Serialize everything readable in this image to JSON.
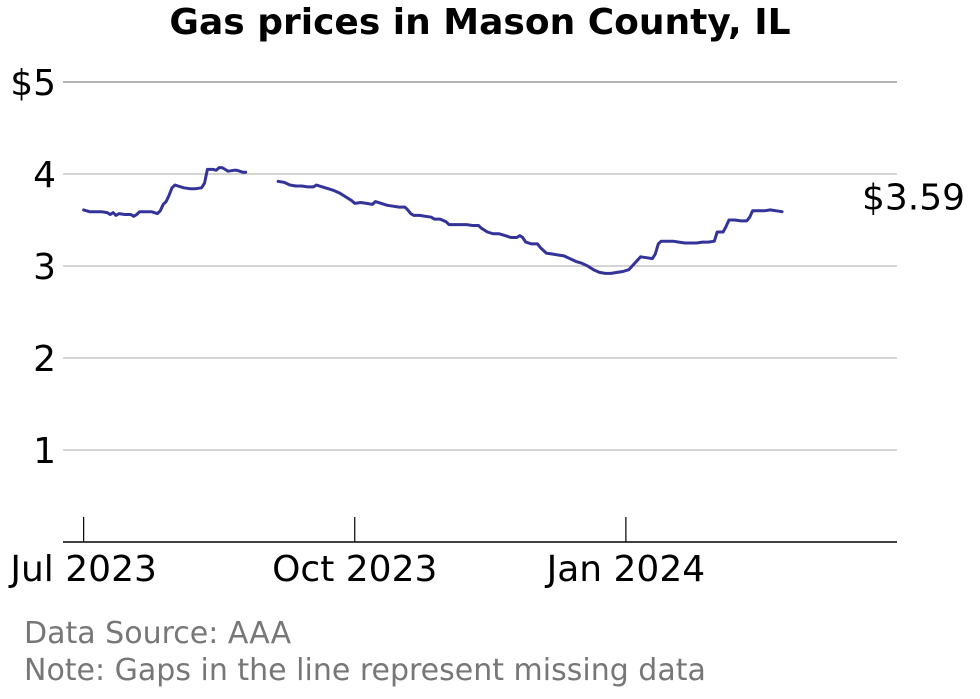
{
  "chart_data": {
    "type": "line",
    "title": "Gas prices in Mason County, IL",
    "xlabel": "",
    "ylabel": "",
    "ylim": [
      0,
      5
    ],
    "xlim": [
      "2023-06-24",
      "2024-04-02"
    ],
    "y_ticks": [
      {
        "value": 5,
        "label": "$5"
      },
      {
        "value": 4,
        "label": "4"
      },
      {
        "value": 3,
        "label": "3"
      },
      {
        "value": 2,
        "label": "2"
      },
      {
        "value": 1,
        "label": "1"
      }
    ],
    "x_ticks": [
      {
        "date": "2023-07-01",
        "label": "Jul 2023"
      },
      {
        "date": "2023-10-01",
        "label": "Oct 2023"
      },
      {
        "date": "2024-01-01",
        "label": "Jan 2024"
      }
    ],
    "grid": true,
    "line_color": "#333399",
    "end_label": "$3.59",
    "series": [
      {
        "segments": [
          [
            [
              "2023-07-01",
              3.61
            ],
            [
              "2023-07-03",
              3.59
            ],
            [
              "2023-07-05",
              3.59
            ],
            [
              "2023-07-07",
              3.59
            ],
            [
              "2023-07-09",
              3.58
            ],
            [
              "2023-07-10",
              3.56
            ],
            [
              "2023-07-11",
              3.58
            ],
            [
              "2023-07-12",
              3.55
            ],
            [
              "2023-07-13",
              3.57
            ],
            [
              "2023-07-15",
              3.56
            ],
            [
              "2023-07-17",
              3.56
            ],
            [
              "2023-07-18",
              3.54
            ],
            [
              "2023-07-19",
              3.56
            ],
            [
              "2023-07-20",
              3.59
            ],
            [
              "2023-07-22",
              3.59
            ],
            [
              "2023-07-24",
              3.59
            ],
            [
              "2023-07-26",
              3.57
            ],
            [
              "2023-07-27",
              3.6
            ],
            [
              "2023-07-28",
              3.67
            ],
            [
              "2023-07-29",
              3.7
            ],
            [
              "2023-07-30",
              3.77
            ],
            [
              "2023-07-31",
              3.85
            ],
            [
              "2023-08-01",
              3.88
            ],
            [
              "2023-08-02",
              3.87
            ],
            [
              "2023-08-04",
              3.85
            ],
            [
              "2023-08-06",
              3.84
            ],
            [
              "2023-08-08",
              3.84
            ],
            [
              "2023-08-10",
              3.85
            ],
            [
              "2023-08-11",
              3.9
            ],
            [
              "2023-08-12",
              4.05
            ],
            [
              "2023-08-14",
              4.05
            ],
            [
              "2023-08-15",
              4.04
            ],
            [
              "2023-08-16",
              4.07
            ],
            [
              "2023-08-17",
              4.07
            ],
            [
              "2023-08-18",
              4.05
            ],
            [
              "2023-08-19",
              4.03
            ],
            [
              "2023-08-21",
              4.04
            ],
            [
              "2023-08-22",
              4.04
            ],
            [
              "2023-08-24",
              4.02
            ],
            [
              "2023-08-25",
              4.02
            ]
          ],
          [
            [
              "2023-09-05",
              3.92
            ],
            [
              "2023-09-07",
              3.91
            ],
            [
              "2023-09-09",
              3.88
            ],
            [
              "2023-09-11",
              3.87
            ],
            [
              "2023-09-13",
              3.87
            ],
            [
              "2023-09-15",
              3.86
            ],
            [
              "2023-09-17",
              3.86
            ],
            [
              "2023-09-18",
              3.88
            ],
            [
              "2023-09-20",
              3.86
            ],
            [
              "2023-09-22",
              3.84
            ],
            [
              "2023-09-24",
              3.82
            ],
            [
              "2023-09-26",
              3.79
            ],
            [
              "2023-09-28",
              3.75
            ],
            [
              "2023-09-30",
              3.71
            ],
            [
              "2023-10-01",
              3.68
            ],
            [
              "2023-10-03",
              3.69
            ],
            [
              "2023-10-05",
              3.68
            ],
            [
              "2023-10-07",
              3.67
            ],
            [
              "2023-10-08",
              3.7
            ],
            [
              "2023-10-10",
              3.68
            ],
            [
              "2023-10-12",
              3.66
            ],
            [
              "2023-10-14",
              3.65
            ],
            [
              "2023-10-16",
              3.64
            ],
            [
              "2023-10-18",
              3.64
            ],
            [
              "2023-10-19",
              3.61
            ],
            [
              "2023-10-20",
              3.57
            ],
            [
              "2023-10-21",
              3.55
            ],
            [
              "2023-10-23",
              3.55
            ],
            [
              "2023-10-25",
              3.54
            ],
            [
              "2023-10-27",
              3.53
            ],
            [
              "2023-10-28",
              3.51
            ],
            [
              "2023-10-30",
              3.51
            ],
            [
              "2023-11-01",
              3.48
            ],
            [
              "2023-11-02",
              3.45
            ],
            [
              "2023-11-04",
              3.45
            ],
            [
              "2023-11-06",
              3.45
            ],
            [
              "2023-11-08",
              3.45
            ],
            [
              "2023-11-10",
              3.44
            ],
            [
              "2023-11-12",
              3.44
            ],
            [
              "2023-11-13",
              3.41
            ],
            [
              "2023-11-15",
              3.37
            ],
            [
              "2023-11-17",
              3.35
            ],
            [
              "2023-11-19",
              3.35
            ],
            [
              "2023-11-21",
              3.33
            ],
            [
              "2023-11-23",
              3.31
            ],
            [
              "2023-11-25",
              3.31
            ],
            [
              "2023-11-26",
              3.33
            ],
            [
              "2023-11-27",
              3.31
            ],
            [
              "2023-11-28",
              3.26
            ],
            [
              "2023-11-30",
              3.24
            ],
            [
              "2023-12-02",
              3.24
            ],
            [
              "2023-12-03",
              3.2
            ],
            [
              "2023-12-05",
              3.14
            ],
            [
              "2023-12-07",
              3.13
            ],
            [
              "2023-12-09",
              3.12
            ],
            [
              "2023-12-11",
              3.11
            ],
            [
              "2023-12-13",
              3.08
            ],
            [
              "2023-12-15",
              3.05
            ],
            [
              "2023-12-17",
              3.03
            ],
            [
              "2023-12-19",
              3.0
            ],
            [
              "2023-12-21",
              2.96
            ],
            [
              "2023-12-23",
              2.93
            ],
            [
              "2023-12-25",
              2.92
            ],
            [
              "2023-12-27",
              2.92
            ],
            [
              "2023-12-29",
              2.93
            ],
            [
              "2023-12-31",
              2.94
            ],
            [
              "2024-01-02",
              2.96
            ],
            [
              "2024-01-04",
              3.03
            ],
            [
              "2024-01-06",
              3.1
            ],
            [
              "2024-01-08",
              3.09
            ],
            [
              "2024-01-10",
              3.08
            ],
            [
              "2024-01-11",
              3.13
            ],
            [
              "2024-01-12",
              3.24
            ],
            [
              "2024-01-13",
              3.27
            ],
            [
              "2024-01-15",
              3.27
            ],
            [
              "2024-01-17",
              3.27
            ],
            [
              "2024-01-19",
              3.26
            ],
            [
              "2024-01-21",
              3.25
            ],
            [
              "2024-01-23",
              3.25
            ],
            [
              "2024-01-25",
              3.25
            ],
            [
              "2024-01-27",
              3.26
            ],
            [
              "2024-01-29",
              3.26
            ],
            [
              "2024-01-31",
              3.27
            ],
            [
              "2024-02-01",
              3.37
            ],
            [
              "2024-02-03",
              3.37
            ],
            [
              "2024-02-04",
              3.43
            ],
            [
              "2024-02-05",
              3.5
            ],
            [
              "2024-02-07",
              3.5
            ],
            [
              "2024-02-09",
              3.49
            ],
            [
              "2024-02-11",
              3.49
            ],
            [
              "2024-02-12",
              3.53
            ],
            [
              "2024-02-13",
              3.6
            ],
            [
              "2024-02-15",
              3.6
            ],
            [
              "2024-02-17",
              3.6
            ],
            [
              "2024-02-19",
              3.61
            ],
            [
              "2024-02-21",
              3.6
            ],
            [
              "2024-02-23",
              3.59
            ]
          ]
        ]
      }
    ]
  },
  "footer": {
    "source": "Data Source: AAA",
    "note": "Note: Gaps in the line represent missing data"
  }
}
